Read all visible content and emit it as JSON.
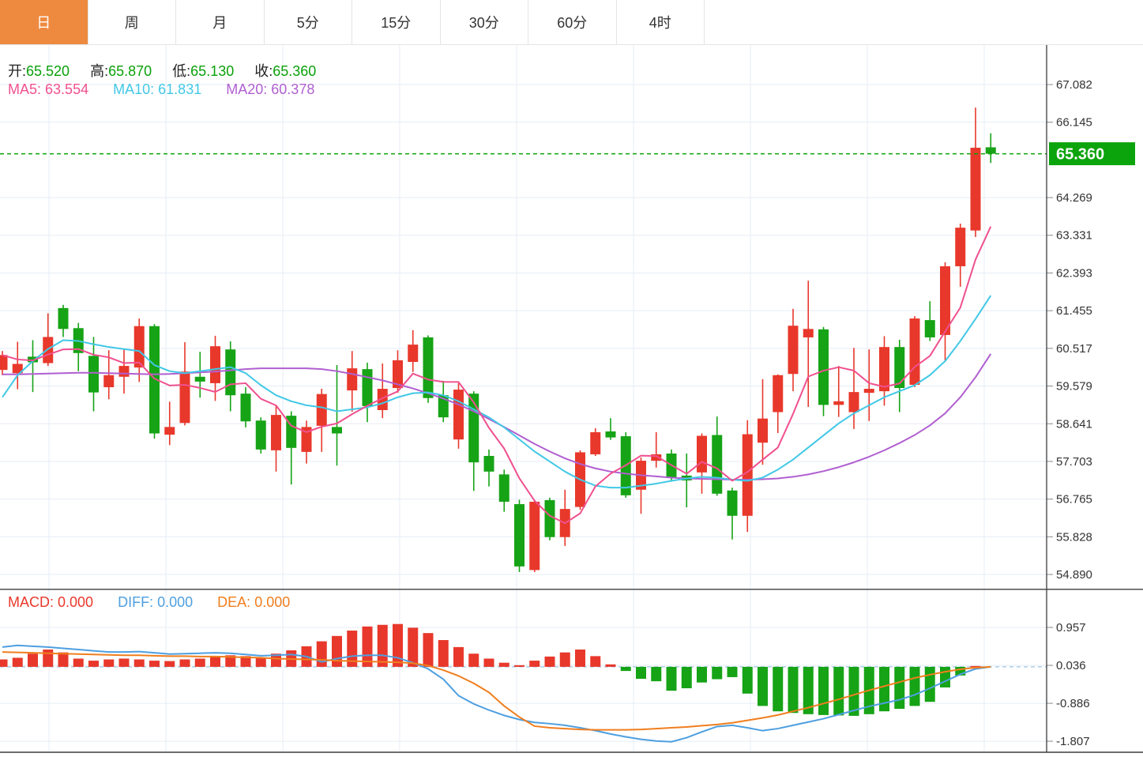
{
  "tab_bar": {
    "tabs": [
      {
        "label": "日",
        "active": true
      },
      {
        "label": "周",
        "active": false
      },
      {
        "label": "月",
        "active": false
      },
      {
        "label": "5分",
        "active": false
      },
      {
        "label": "15分",
        "active": false
      },
      {
        "label": "30分",
        "active": false
      },
      {
        "label": "60分",
        "active": false
      },
      {
        "label": "4时",
        "active": false
      }
    ]
  },
  "ohlc_legend": {
    "open_label": "开:",
    "open_value": "65.520",
    "high_label": "高:",
    "high_value": "65.870",
    "low_label": "低:",
    "low_value": "65.130",
    "close_label": "收:",
    "close_value": "65.360"
  },
  "ma_legend": {
    "ma5_label": "MA5:",
    "ma5_value": "63.554",
    "ma10_label": "MA10:",
    "ma10_value": "61.831",
    "ma20_label": "MA20:",
    "ma20_value": "60.378"
  },
  "macd_legend": {
    "macd_label": "MACD:",
    "macd_value": "0.000",
    "diff_label": "DIFF:",
    "diff_value": "0.000",
    "dea_label": "DEA:",
    "dea_value": "0.000"
  },
  "price_tag": {
    "value": "65.360"
  },
  "colors": {
    "up": "#e8382b",
    "down": "#16a316",
    "ma5": "#f0508f",
    "ma10": "#41c8e6",
    "ma20": "#b05fd0",
    "diff": "#4e9fe0",
    "dea": "#f07e1e",
    "tab_active_bg": "#ee8a40",
    "tag_bg": "#0ca40c",
    "dashed_line": "#0aa30a",
    "grid": "#e5eef6",
    "axis_line": "#3c3c3c",
    "axis_text": "#333333",
    "value_text": "#0aa10a",
    "macd_zero_dash": "#aecfe8"
  },
  "chart_data": [
    {
      "type": "candlestick",
      "title": "daily-price-panel",
      "color_convention": "red = up (CN), green = down",
      "ylim": [
        54.54,
        68.06
      ],
      "y_ticks": [
        67.082,
        66.145,
        64.269,
        63.331,
        62.393,
        61.455,
        60.517,
        59.579,
        58.641,
        57.703,
        56.765,
        55.828,
        54.89
      ],
      "current_price": 65.36,
      "legend_position": "top-left",
      "grid": true,
      "ohlc": [
        [
          59.98,
          60.45,
          59.85,
          60.35
        ],
        [
          59.9,
          60.68,
          59.5,
          60.13
        ],
        [
          60.31,
          60.72,
          59.43,
          60.17
        ],
        [
          60.15,
          61.39,
          60.08,
          60.8
        ],
        [
          61.52,
          61.6,
          60.8,
          61.0
        ],
        [
          61.02,
          61.15,
          59.95,
          60.4
        ],
        [
          60.33,
          60.8,
          58.95,
          59.42
        ],
        [
          59.55,
          60.47,
          59.25,
          59.85
        ],
        [
          59.81,
          60.49,
          59.39,
          60.08
        ],
        [
          60.04,
          61.26,
          59.68,
          61.07
        ],
        [
          61.07,
          61.12,
          58.27,
          58.4
        ],
        [
          58.37,
          59.19,
          58.11,
          58.56
        ],
        [
          58.66,
          60.67,
          58.6,
          59.94
        ],
        [
          59.81,
          60.43,
          59.29,
          59.69
        ],
        [
          59.65,
          60.83,
          59.21,
          60.57
        ],
        [
          60.49,
          60.69,
          58.95,
          59.35
        ],
        [
          59.39,
          59.55,
          58.55,
          58.7
        ],
        [
          58.72,
          58.8,
          57.9,
          58.0
        ],
        [
          57.98,
          59.1,
          57.45,
          58.86
        ],
        [
          58.84,
          58.95,
          57.13,
          58.04
        ],
        [
          57.94,
          58.72,
          57.65,
          58.56
        ],
        [
          58.59,
          59.51,
          57.94,
          59.38
        ],
        [
          58.56,
          60.1,
          57.6,
          58.4
        ],
        [
          59.47,
          60.45,
          58.94,
          60.02
        ],
        [
          60.0,
          60.16,
          58.68,
          59.08
        ],
        [
          58.98,
          60.14,
          58.78,
          59.51
        ],
        [
          59.53,
          60.47,
          59.41,
          60.22
        ],
        [
          60.18,
          60.97,
          59.93,
          60.61
        ],
        [
          60.79,
          60.84,
          59.16,
          59.28
        ],
        [
          59.35,
          59.71,
          58.68,
          58.8
        ],
        [
          58.25,
          59.65,
          58.02,
          59.49
        ],
        [
          59.39,
          59.45,
          56.97,
          57.68
        ],
        [
          57.84,
          58.0,
          57.08,
          57.45
        ],
        [
          57.38,
          57.5,
          56.45,
          56.7
        ],
        [
          56.64,
          56.75,
          54.95,
          55.09
        ],
        [
          55.0,
          56.74,
          54.95,
          56.7
        ],
        [
          56.74,
          56.8,
          55.74,
          55.82
        ],
        [
          55.82,
          57.0,
          55.6,
          56.52
        ],
        [
          56.57,
          57.98,
          56.5,
          57.93
        ],
        [
          57.88,
          58.53,
          57.84,
          58.43
        ],
        [
          58.45,
          58.78,
          58.24,
          58.3
        ],
        [
          58.33,
          58.43,
          56.8,
          56.86
        ],
        [
          57.0,
          57.8,
          56.4,
          57.72
        ],
        [
          57.72,
          58.43,
          57.55,
          57.88
        ],
        [
          57.9,
          58.0,
          57.2,
          57.29
        ],
        [
          57.35,
          57.9,
          56.56,
          57.23
        ],
        [
          57.43,
          58.4,
          56.9,
          58.34
        ],
        [
          58.36,
          58.82,
          56.85,
          56.9
        ],
        [
          56.98,
          57.05,
          55.76,
          56.35
        ],
        [
          56.35,
          58.73,
          55.95,
          58.38
        ],
        [
          58.17,
          59.75,
          57.62,
          58.77
        ],
        [
          58.93,
          59.87,
          58.41,
          59.85
        ],
        [
          59.88,
          61.5,
          59.45,
          61.08
        ],
        [
          60.79,
          62.2,
          59.06,
          61.0
        ],
        [
          60.99,
          61.05,
          58.83,
          59.11
        ],
        [
          59.11,
          60.08,
          58.81,
          59.2
        ],
        [
          58.93,
          60.53,
          58.51,
          59.43
        ],
        [
          59.41,
          60.49,
          58.71,
          59.51
        ],
        [
          59.45,
          60.82,
          59.09,
          60.55
        ],
        [
          60.55,
          60.73,
          58.93,
          59.53
        ],
        [
          59.61,
          61.32,
          59.55,
          61.26
        ],
        [
          61.22,
          61.69,
          60.7,
          60.79
        ],
        [
          60.85,
          62.66,
          60.2,
          62.56
        ],
        [
          62.56,
          63.62,
          62.05,
          63.52
        ],
        [
          63.45,
          66.51,
          63.29,
          65.51
        ],
        [
          65.52,
          65.87,
          65.13,
          65.36
        ]
      ],
      "ma5_period": 5,
      "ma10": [
        59.3,
        59.85,
        60.2,
        60.5,
        60.72,
        60.7,
        60.62,
        60.55,
        60.5,
        60.45,
        60.1,
        59.95,
        59.9,
        59.95,
        60.0,
        60.05,
        59.9,
        59.6,
        59.35,
        59.2,
        59.1,
        59.05,
        58.95,
        59.0,
        59.05,
        59.15,
        59.3,
        59.4,
        59.42,
        59.35,
        59.2,
        59.0,
        58.8,
        58.55,
        58.25,
        57.95,
        57.7,
        57.45,
        57.25,
        57.1,
        57.05,
        57.05,
        57.1,
        57.15,
        57.22,
        57.28,
        57.32,
        57.3,
        57.25,
        57.22,
        57.3,
        57.5,
        57.75,
        58.05,
        58.35,
        58.65,
        58.9,
        59.1,
        59.3,
        59.45,
        59.6,
        59.85,
        60.2,
        60.7,
        61.25,
        61.83
      ],
      "ma20": [
        59.87,
        59.87,
        59.88,
        59.89,
        59.9,
        59.91,
        59.91,
        59.9,
        59.89,
        59.88,
        59.87,
        59.88,
        59.9,
        59.92,
        59.94,
        59.97,
        60.0,
        60.02,
        60.02,
        60.02,
        60.02,
        60.0,
        59.95,
        59.88,
        59.8,
        59.72,
        59.62,
        59.52,
        59.4,
        59.27,
        59.12,
        58.95,
        58.76,
        58.56,
        58.35,
        58.14,
        57.95,
        57.78,
        57.64,
        57.53,
        57.45,
        57.4,
        57.36,
        57.33,
        57.3,
        57.28,
        57.27,
        57.26,
        57.25,
        57.25,
        57.26,
        57.28,
        57.32,
        57.38,
        57.46,
        57.56,
        57.68,
        57.82,
        57.98,
        58.16,
        58.36,
        58.6,
        58.9,
        59.3,
        59.8,
        60.38
      ]
    },
    {
      "type": "bar+line",
      "title": "MACD-panel",
      "y_ticks": [
        0.957,
        0.036,
        -0.886,
        -1.807
      ],
      "grid": true,
      "histogram": [
        0.18,
        0.22,
        0.32,
        0.42,
        0.35,
        0.2,
        0.15,
        0.18,
        0.2,
        0.18,
        0.15,
        0.14,
        0.18,
        0.2,
        0.24,
        0.28,
        0.26,
        0.22,
        0.32,
        0.4,
        0.5,
        0.62,
        0.75,
        0.88,
        0.98,
        1.02,
        1.04,
        0.95,
        0.82,
        0.65,
        0.48,
        0.32,
        0.2,
        0.1,
        0.04,
        0.15,
        0.25,
        0.35,
        0.42,
        0.26,
        0.06,
        -0.1,
        -0.29,
        -0.35,
        -0.58,
        -0.52,
        -0.38,
        -0.3,
        -0.25,
        -0.65,
        -0.95,
        -1.08,
        -1.12,
        -1.15,
        -1.17,
        -1.18,
        -1.19,
        -1.15,
        -1.08,
        -1.02,
        -0.95,
        -0.85,
        -0.5,
        -0.21,
        0.02,
        0.0
      ],
      "diff": [
        0.48,
        0.52,
        0.5,
        0.48,
        0.45,
        0.42,
        0.39,
        0.36,
        0.36,
        0.37,
        0.34,
        0.31,
        0.32,
        0.33,
        0.34,
        0.33,
        0.3,
        0.27,
        0.28,
        0.3,
        0.25,
        0.12,
        0.2,
        0.26,
        0.28,
        0.28,
        0.22,
        0.1,
        -0.05,
        -0.3,
        -0.7,
        -0.9,
        -1.05,
        -1.18,
        -1.28,
        -1.35,
        -1.38,
        -1.42,
        -1.48,
        -1.55,
        -1.63,
        -1.7,
        -1.76,
        -1.8,
        -1.82,
        -1.72,
        -1.58,
        -1.45,
        -1.42,
        -1.48,
        -1.55,
        -1.5,
        -1.42,
        -1.34,
        -1.26,
        -1.16,
        -1.06,
        -0.96,
        -0.88,
        -0.8,
        -0.68,
        -0.52,
        -0.35,
        -0.18,
        -0.05,
        0.0
      ],
      "dea": [
        0.36,
        0.35,
        0.34,
        0.33,
        0.32,
        0.31,
        0.3,
        0.29,
        0.28,
        0.28,
        0.27,
        0.26,
        0.26,
        0.25,
        0.25,
        0.24,
        0.23,
        0.22,
        0.2,
        0.19,
        0.18,
        0.17,
        0.15,
        0.14,
        0.13,
        0.12,
        0.11,
        0.09,
        0.03,
        -0.08,
        -0.22,
        -0.4,
        -0.62,
        -0.95,
        -1.22,
        -1.44,
        -1.48,
        -1.5,
        -1.52,
        -1.53,
        -1.53,
        -1.53,
        -1.52,
        -1.5,
        -1.48,
        -1.46,
        -1.43,
        -1.4,
        -1.36,
        -1.3,
        -1.24,
        -1.17,
        -1.08,
        -0.99,
        -0.89,
        -0.79,
        -0.68,
        -0.57,
        -0.47,
        -0.37,
        -0.27,
        -0.19,
        -0.12,
        -0.06,
        -0.02,
        0.0
      ]
    }
  ]
}
